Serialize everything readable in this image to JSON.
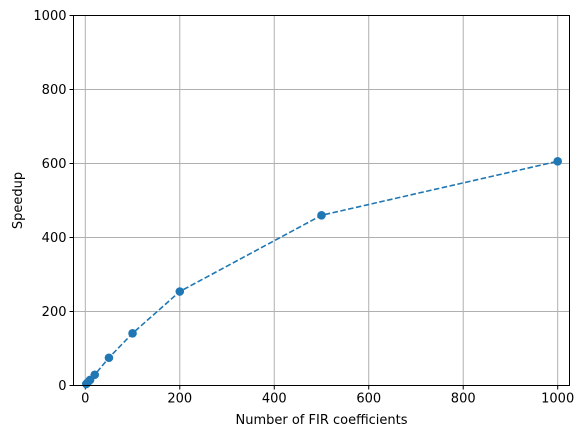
{
  "chart_data": {
    "type": "line",
    "title": "",
    "xlabel": "Number of FIR coefficients",
    "ylabel": "Speedup",
    "xlim": [
      -25,
      1025
    ],
    "ylim": [
      0,
      1000
    ],
    "x_ticks": [
      0,
      200,
      400,
      600,
      800,
      1000
    ],
    "y_ticks": [
      0,
      200,
      400,
      600,
      800,
      1000
    ],
    "grid": true,
    "series": [
      {
        "x": [
          2,
          5,
          10,
          20,
          50,
          100,
          200,
          500,
          1000
        ],
        "y": [
          4,
          8,
          15,
          29,
          75,
          141,
          254,
          460,
          606
        ],
        "color": "#1f77b4",
        "line_style": "dashed",
        "marker": "circle"
      }
    ]
  }
}
